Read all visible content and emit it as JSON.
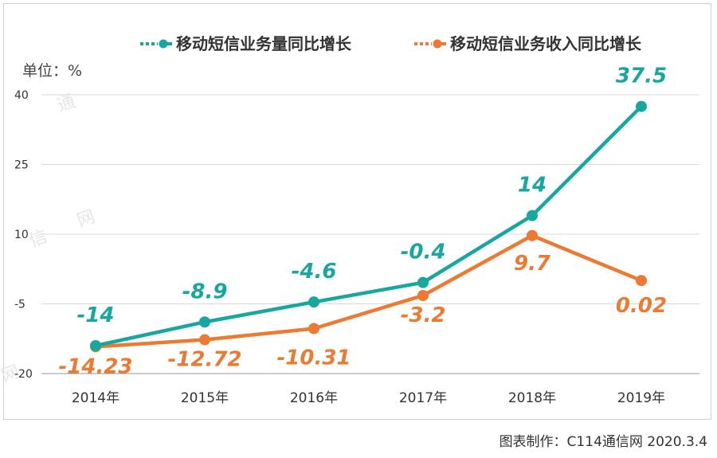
{
  "chart_data": {
    "type": "line",
    "categories": [
      "2014年",
      "2015年",
      "2016年",
      "2017年",
      "2018年",
      "2019年"
    ],
    "series": [
      {
        "name": "移动短信业务量同比增长",
        "values": [
          -14,
          -8.9,
          -4.6,
          -0.4,
          14,
          37.5
        ],
        "labels": [
          "-14",
          "-8.9",
          "-4.6",
          "-0.4",
          "14",
          "37.5"
        ],
        "color": "#17a79e"
      },
      {
        "name": "移动短信业务收入同比增长",
        "values": [
          -14.23,
          -12.72,
          -10.31,
          -3.2,
          9.7,
          0.02
        ],
        "labels": [
          "-14.23",
          "-12.72",
          "-10.31",
          "-3.2",
          "9.7",
          "0.02"
        ],
        "color": "#ec7a32"
      }
    ],
    "unit_label": "单位：%",
    "yticks": [
      "40",
      "25",
      "10",
      "-5",
      "-20"
    ],
    "ytick_values": [
      40,
      25,
      10,
      -5,
      -20
    ],
    "ylim": [
      -20,
      40
    ],
    "grid": true,
    "legend_position": "top"
  },
  "credit": "图表制作：C114通信网  2020.3.4",
  "watermark_chars": [
    "通",
    "信",
    "网",
    "网"
  ]
}
